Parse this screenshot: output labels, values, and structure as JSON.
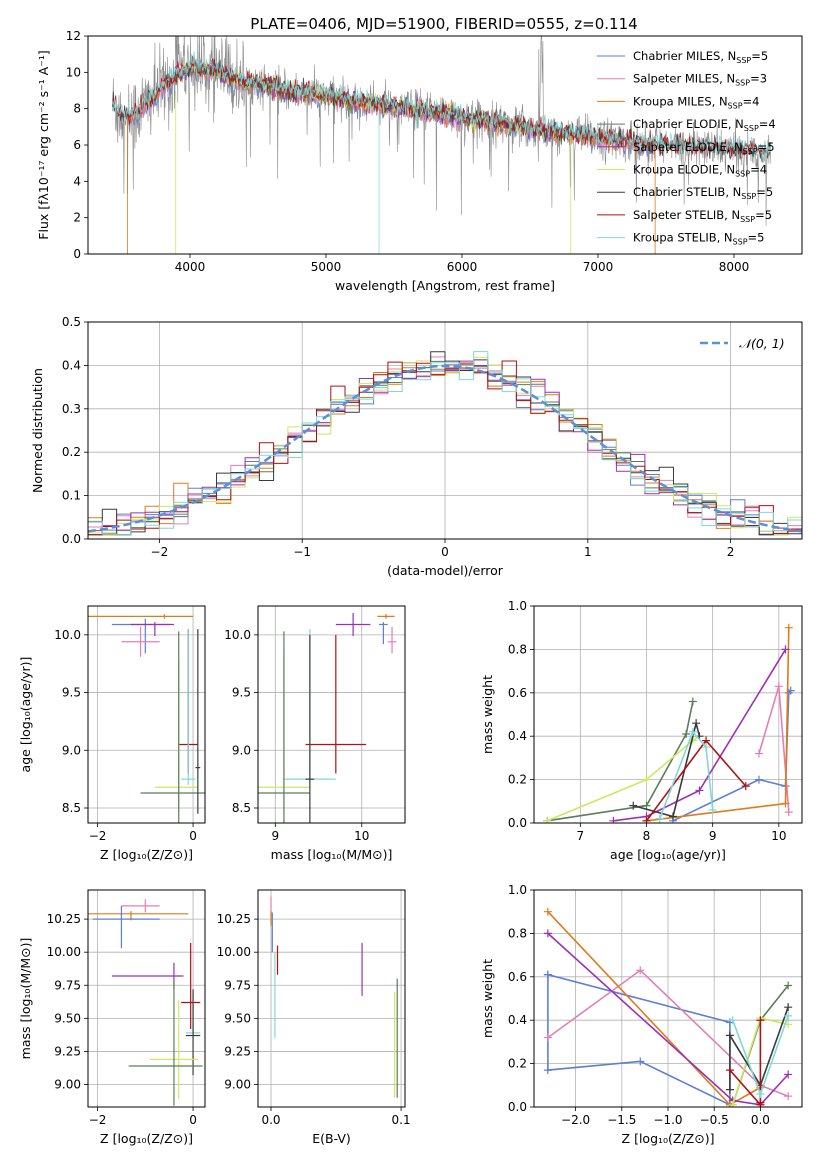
{
  "figure": {
    "title": "PLATE=0406, MJD=51900, FIBERID=0555, z=0.114"
  },
  "colors": {
    "chabrier_miles": "#5b7fd6",
    "salpeter_miles": "#e47fb5",
    "kroupa_miles": "#e07b1a",
    "chabrier_elodie": "#5a7d5a",
    "salpeter_elodie": "#9b30b5",
    "kroupa_elodie": "#cde860",
    "chabrier_stelib": "#3b3b3b",
    "salpeter_stelib": "#b01010",
    "kroupa_stelib": "#7fd8d8",
    "data_spectrum": "#8a8a8a",
    "normal_curve": "#5b8fd6",
    "grid": "#b0b0b0"
  },
  "chart_data": [
    {
      "id": "spectrum",
      "type": "line",
      "xlabel": "wavelength [Angstrom, rest frame]",
      "ylabel": "Flux [fλ10⁻¹⁷ erg cm⁻² s⁻¹ A⁻¹]",
      "xlim": [
        3250,
        8500
      ],
      "ylim": [
        0,
        12
      ],
      "xticks": [
        4000,
        5000,
        6000,
        7000,
        8000
      ],
      "yticks": [
        0,
        2,
        4,
        6,
        8,
        10,
        12
      ],
      "grid": false,
      "legend_position": "top-right",
      "legend": [
        {
          "label": "Chabrier MILES, N",
          "sub": "SSP",
          "suffix": "=5",
          "color_key": "chabrier_miles"
        },
        {
          "label": "Salpeter MILES, N",
          "sub": "SSP",
          "suffix": "=3",
          "color_key": "salpeter_miles"
        },
        {
          "label": "Kroupa MILES, N",
          "sub": "SSP",
          "suffix": "=4",
          "color_key": "kroupa_miles"
        },
        {
          "label": "Chabrier ELODIE, N",
          "sub": "SSP",
          "suffix": "=4",
          "color_key": "chabrier_elodie"
        },
        {
          "label": "Salpeter ELODIE, N",
          "sub": "SSP",
          "suffix": "=5",
          "color_key": "salpeter_elodie"
        },
        {
          "label": "Kroupa ELODIE, N",
          "sub": "SSP",
          "suffix": "=4",
          "color_key": "kroupa_elodie"
        },
        {
          "label": "Chabrier STELIB, N",
          "sub": "SSP",
          "suffix": "=5",
          "color_key": "chabrier_stelib"
        },
        {
          "label": "Salpeter STELIB, N",
          "sub": "SSP",
          "suffix": "=5",
          "color_key": "salpeter_stelib"
        },
        {
          "label": "Kroupa STELIB, N",
          "sub": "SSP",
          "suffix": "=5",
          "color_key": "kroupa_stelib"
        }
      ],
      "continuum": {
        "x": [
          3430,
          3500,
          3600,
          3700,
          3800,
          3900,
          4000,
          4100,
          4200,
          4300,
          4400,
          4500,
          4600,
          4700,
          4800,
          4900,
          5000,
          5200,
          5400,
          5600,
          5800,
          6000,
          6200,
          6400,
          6600,
          6800,
          7000,
          7200,
          7400,
          7600,
          7800,
          8000,
          8200
        ],
        "y": [
          8.2,
          7.6,
          7.7,
          8.4,
          9.2,
          9.8,
          10.3,
          10.2,
          10.0,
          9.7,
          9.5,
          9.4,
          9.2,
          9.0,
          8.9,
          8.8,
          8.7,
          8.4,
          8.2,
          8.0,
          7.8,
          7.5,
          7.3,
          7.0,
          6.8,
          6.6,
          6.4,
          6.2,
          6.0,
          5.9,
          5.8,
          5.7,
          5.6
        ]
      }
    },
    {
      "id": "residuals",
      "type": "histogram",
      "xlabel": "(data-model)/error",
      "ylabel": "Normed distribution",
      "xlim": [
        -2.5,
        2.5
      ],
      "ylim": [
        0,
        0.5
      ],
      "xticks": [
        -2,
        -1,
        0,
        1,
        2
      ],
      "yticks": [
        0.0,
        0.1,
        0.2,
        0.3,
        0.4,
        0.5
      ],
      "grid": true,
      "legend_position": "top-right",
      "reference_curve": {
        "label": "𝒩(0, 1)",
        "mean": 0,
        "sigma": 1
      },
      "bin_width": 0.1,
      "series_count": 9
    },
    {
      "id": "age_vs_Z",
      "type": "scatter",
      "xlabel": "Z [log₁₀(Z/Z⊙)]",
      "ylabel": "age  [log₁₀(age/yr)]",
      "xlim": [
        -2.2,
        0.25
      ],
      "ylim": [
        8.37,
        10.25
      ],
      "xticks": [
        -2,
        0
      ],
      "yticks": [
        8.5,
        9.0,
        9.5,
        10.0
      ],
      "grid": true,
      "points": [
        {
          "series": "kroupa_miles",
          "x": -0.6,
          "y": 10.16,
          "xerr": [
            1.6,
            0.6
          ],
          "yerr": [
            0.02,
            0.02
          ]
        },
        {
          "series": "chabrier_miles",
          "x": -1.0,
          "y": 10.09,
          "xerr": [
            0.7,
            0.5
          ],
          "yerr": [
            0.25,
            0.05
          ]
        },
        {
          "series": "salpeter_elodie",
          "x": -0.8,
          "y": 10.09,
          "xerr": [
            0.5,
            0.4
          ],
          "yerr": [
            0.1,
            0.02
          ]
        },
        {
          "series": "salpeter_miles",
          "x": -1.1,
          "y": 9.94,
          "xerr": [
            0.4,
            0.4
          ],
          "yerr": [
            0.13,
            0.13
          ]
        },
        {
          "series": "salpeter_stelib",
          "x": -0.1,
          "y": 9.05,
          "xerr": [
            0.2,
            0.2
          ],
          "yerr": [
            0.25,
            1.0
          ]
        },
        {
          "series": "kroupa_stelib",
          "x": -0.1,
          "y": 8.75,
          "xerr": [
            0.15,
            0.15
          ],
          "yerr": [
            0.05,
            1.3
          ]
        },
        {
          "series": "kroupa_elodie",
          "x": -0.3,
          "y": 8.68,
          "xerr": [
            0.5,
            0.4
          ],
          "yerr": [
            0.2,
            1.1
          ]
        },
        {
          "series": "chabrier_elodie",
          "x": -0.3,
          "y": 8.63,
          "xerr": [
            0.8,
            0.6
          ],
          "yerr": [
            0.3,
            1.4
          ]
        },
        {
          "series": "chabrier_stelib",
          "x": 0.1,
          "y": 8.85,
          "xerr": [
            0.05,
            0.05
          ],
          "yerr": [
            0.4,
            1.2
          ]
        }
      ]
    },
    {
      "id": "age_vs_mass",
      "type": "scatter",
      "xlabel": "mass [log₁₀(M/M⊙)]",
      "ylabel": "",
      "xlim": [
        8.8,
        10.5
      ],
      "ylim": [
        8.37,
        10.25
      ],
      "xticks": [
        9,
        10
      ],
      "yticks": [
        8.5,
        9.0,
        9.5,
        10.0
      ],
      "grid": true,
      "points": [
        {
          "series": "kroupa_miles",
          "x": 10.28,
          "y": 10.16,
          "xerr": [
            0.1,
            0.1
          ],
          "yerr": [
            0.02,
            0.02
          ]
        },
        {
          "series": "chabrier_miles",
          "x": 10.25,
          "y": 10.09,
          "xerr": [
            0.05,
            0.05
          ],
          "yerr": [
            0.17,
            0.02
          ]
        },
        {
          "series": "salpeter_miles",
          "x": 10.35,
          "y": 9.94,
          "xerr": [
            0.05,
            0.05
          ],
          "yerr": [
            0.1,
            0.13
          ]
        },
        {
          "series": "salpeter_elodie",
          "x": 9.9,
          "y": 10.09,
          "xerr": [
            0.2,
            0.2
          ],
          "yerr": [
            0.1,
            0.1
          ]
        },
        {
          "series": "salpeter_stelib",
          "x": 9.7,
          "y": 9.05,
          "xerr": [
            0.35,
            0.35
          ],
          "yerr": [
            0.25,
            0.95
          ]
        },
        {
          "series": "kroupa_stelib",
          "x": 9.4,
          "y": 8.75,
          "xerr": [
            0.3,
            0.3
          ],
          "yerr": [
            0.05,
            1.3
          ]
        },
        {
          "series": "kroupa_elodie",
          "x": 9.1,
          "y": 8.68,
          "xerr": [
            0.3,
            0.3
          ],
          "yerr": [
            0.2,
            1.15
          ]
        },
        {
          "series": "chabrier_elodie",
          "x": 9.1,
          "y": 8.63,
          "xerr": [
            0.3,
            0.3
          ],
          "yerr": [
            0.3,
            1.4
          ]
        },
        {
          "series": "chabrier_stelib",
          "x": 9.4,
          "y": 8.75,
          "xerr": [
            0.05,
            0.05
          ],
          "yerr": [
            0.4,
            1.25
          ]
        }
      ]
    },
    {
      "id": "weight_vs_age",
      "type": "line",
      "xlabel": "age  [log₁₀(age/yr)]",
      "ylabel": "mass weight",
      "xlim": [
        6.3,
        10.35
      ],
      "ylim": [
        0,
        1
      ],
      "xticks": [
        7,
        8,
        9,
        10
      ],
      "yticks": [
        0.0,
        0.2,
        0.4,
        0.6,
        0.8,
        1.0
      ],
      "grid": true,
      "series": [
        {
          "key": "chabrier_miles",
          "x": [
            8.4,
            9.7,
            10.1,
            10.15,
            10.18
          ],
          "y": [
            0.01,
            0.2,
            0.17,
            0.6,
            0.61
          ]
        },
        {
          "key": "salpeter_miles",
          "x": [
            9.7,
            10.0,
            10.15
          ],
          "y": [
            0.32,
            0.63,
            0.05
          ]
        },
        {
          "key": "kroupa_miles",
          "x": [
            8.0,
            10.1,
            10.15
          ],
          "y": [
            0.01,
            0.09,
            0.9
          ]
        },
        {
          "key": "chabrier_elodie",
          "x": [
            6.5,
            8.0,
            8.6,
            8.7
          ],
          "y": [
            0.01,
            0.08,
            0.41,
            0.56
          ]
        },
        {
          "key": "salpeter_elodie",
          "x": [
            7.5,
            8.0,
            8.8,
            10.1
          ],
          "y": [
            0.01,
            0.03,
            0.15,
            0.8
          ]
        },
        {
          "key": "kroupa_elodie",
          "x": [
            6.5,
            8.0,
            8.7,
            8.8
          ],
          "y": [
            0.01,
            0.2,
            0.38,
            0.4
          ]
        },
        {
          "key": "chabrier_stelib",
          "x": [
            7.8,
            8.4,
            8.75,
            8.8
          ],
          "y": [
            0.08,
            0.03,
            0.46,
            0.4
          ]
        },
        {
          "key": "salpeter_stelib",
          "x": [
            8.0,
            8.9,
            9.5
          ],
          "y": [
            0.01,
            0.38,
            0.17
          ]
        },
        {
          "key": "kroupa_stelib",
          "x": [
            8.2,
            8.7,
            8.9,
            9.0
          ],
          "y": [
            0.02,
            0.42,
            0.35,
            0.06
          ]
        }
      ]
    },
    {
      "id": "mass_vs_Z",
      "type": "scatter",
      "xlabel": "Z [log₁₀(Z/Z⊙)]",
      "ylabel": "mass [log₁₀(M/M⊙)]",
      "xlim": [
        -2.2,
        0.25
      ],
      "ylim": [
        8.83,
        10.47
      ],
      "xticks": [
        -2,
        0
      ],
      "yticks": [
        9.0,
        9.25,
        9.5,
        9.75,
        10.0,
        10.25
      ],
      "grid": true,
      "points": [
        {
          "series": "salpeter_miles",
          "x": -1.0,
          "y": 10.35,
          "xerr": [
            0.5,
            0.3
          ],
          "yerr": [
            0.05,
            0.05
          ]
        },
        {
          "series": "kroupa_miles",
          "x": -1.3,
          "y": 10.29,
          "xerr": [
            0.9,
            1.2
          ],
          "yerr": [
            0.05,
            0.02
          ]
        },
        {
          "series": "chabrier_miles",
          "x": -1.5,
          "y": 10.25,
          "xerr": [
            0.6,
            0.8
          ],
          "yerr": [
            0.22,
            0.1
          ]
        },
        {
          "series": "salpeter_elodie",
          "x": -0.4,
          "y": 9.82,
          "xerr": [
            1.3,
            0.2
          ],
          "yerr": [
            0.1,
            0.1
          ]
        },
        {
          "series": "salpeter_stelib",
          "x": -0.05,
          "y": 9.62,
          "xerr": [
            0.2,
            0.2
          ],
          "yerr": [
            0.2,
            0.45
          ]
        },
        {
          "series": "kroupa_stelib",
          "x": 0.0,
          "y": 9.39,
          "xerr": [
            0.15,
            0.15
          ],
          "yerr": [
            0.03,
            0.3
          ]
        },
        {
          "series": "chabrier_stelib",
          "x": 0.0,
          "y": 9.37,
          "xerr": [
            0.15,
            0.15
          ],
          "yerr": [
            0.3,
            0.35
          ]
        },
        {
          "series": "kroupa_elodie",
          "x": -0.3,
          "y": 9.19,
          "xerr": [
            0.6,
            0.4
          ],
          "yerr": [
            0.3,
            0.45
          ]
        },
        {
          "series": "chabrier_elodie",
          "x": -0.4,
          "y": 9.14,
          "xerr": [
            0.95,
            0.6
          ],
          "yerr": [
            0.3,
            0.65
          ]
        }
      ]
    },
    {
      "id": "mass_vs_ebv",
      "type": "scatter",
      "xlabel": "E(B-V)",
      "ylabel": "",
      "xlim": [
        -0.01,
        0.103
      ],
      "ylim": [
        8.83,
        10.47
      ],
      "xticks": [
        0.0,
        0.1
      ],
      "yticks": [
        9.0,
        9.25,
        9.5,
        9.75,
        10.0,
        10.25
      ],
      "grid": true,
      "points": [
        {
          "series": "salpeter_miles",
          "x": 0.0,
          "y": 10.37,
          "yerr": [
            0.1,
            0.05
          ]
        },
        {
          "series": "kroupa_miles",
          "x": 0.0,
          "y": 10.26,
          "yerr": [
            0.06,
            0.05
          ]
        },
        {
          "series": "chabrier_miles",
          "x": 0.001,
          "y": 10.2,
          "yerr": [
            0.2,
            0.1
          ]
        },
        {
          "series": "salpeter_stelib",
          "x": 0.005,
          "y": 9.95,
          "yerr": [
            0.12,
            0.1
          ]
        },
        {
          "series": "kroupa_stelib",
          "x": 0.003,
          "y": 9.65,
          "yerr": [
            0.3,
            0.35
          ]
        },
        {
          "series": "salpeter_elodie",
          "x": 0.07,
          "y": 9.87,
          "yerr": [
            0.2,
            0.2
          ]
        },
        {
          "series": "chabrier_elodie",
          "x": 0.097,
          "y": 9.35,
          "yerr": [
            0.45,
            0.45
          ]
        },
        {
          "series": "kroupa_elodie",
          "x": 0.095,
          "y": 9.25,
          "yerr": [
            0.35,
            0.45
          ]
        }
      ]
    },
    {
      "id": "weight_vs_Z",
      "type": "line",
      "xlabel": "Z [log₁₀(Z/Z⊙)]",
      "ylabel": "mass weight",
      "xlim": [
        -2.45,
        0.45
      ],
      "ylim": [
        0,
        1
      ],
      "xticks": [
        -2.0,
        -1.5,
        -1.0,
        -0.5,
        0.0
      ],
      "yticks": [
        0.0,
        0.2,
        0.4,
        0.6,
        0.8,
        1.0
      ],
      "grid": true,
      "series": [
        {
          "key": "chabrier_miles",
          "x": [
            -2.3,
            -2.3,
            -1.3,
            -0.33,
            -0.33,
            -2.3
          ],
          "y": [
            0.61,
            0.17,
            0.21,
            0.01,
            0.39,
            0.61
          ]
        },
        {
          "key": "salpeter_miles",
          "x": [
            -2.3,
            -1.3,
            0.0,
            0.3
          ],
          "y": [
            0.32,
            0.63,
            0.1,
            0.05
          ]
        },
        {
          "key": "kroupa_miles",
          "x": [
            -2.3,
            -0.33,
            0.0
          ],
          "y": [
            0.9,
            0.01,
            0.09
          ]
        },
        {
          "key": "chabrier_elodie",
          "x": [
            -0.3,
            0.0,
            0.3
          ],
          "y": [
            0.01,
            0.4,
            0.56
          ]
        },
        {
          "key": "salpeter_elodie",
          "x": [
            -2.3,
            -0.3,
            0.0,
            0.3
          ],
          "y": [
            0.8,
            0.03,
            0.01,
            0.15
          ]
        },
        {
          "key": "kroupa_elodie",
          "x": [
            -0.3,
            0.0,
            0.3
          ],
          "y": [
            0.01,
            0.41,
            0.38
          ]
        },
        {
          "key": "chabrier_stelib",
          "x": [
            -0.33,
            -0.33,
            0.0,
            0.3
          ],
          "y": [
            0.08,
            0.33,
            0.1,
            0.46
          ]
        },
        {
          "key": "salpeter_stelib",
          "x": [
            -0.33,
            0.0,
            0.0,
            0.0
          ],
          "y": [
            0.17,
            0.01,
            0.4,
            0.02
          ]
        },
        {
          "key": "kroupa_stelib",
          "x": [
            -0.3,
            0.0,
            0.3
          ],
          "y": [
            0.4,
            0.06,
            0.42
          ]
        }
      ]
    }
  ]
}
